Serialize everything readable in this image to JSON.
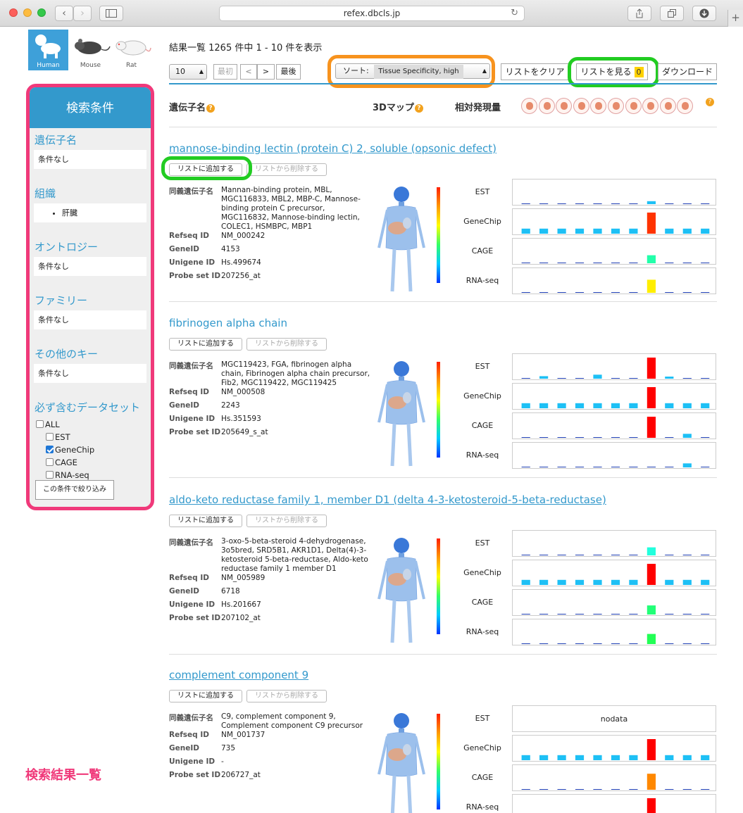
{
  "browser": {
    "url": "refex.dbcls.jp",
    "back": "‹",
    "forward": "›",
    "reload": "↻",
    "new_tab": "+"
  },
  "species": {
    "human": "Human",
    "mouse": "Mouse",
    "rat": "Rat"
  },
  "sidebar": {
    "title": "検索条件",
    "sections": [
      {
        "title": "遺伝子名",
        "value": "条件なし"
      },
      {
        "title": "組織",
        "value": "肝臓"
      },
      {
        "title": "オントロジー",
        "value": "条件なし"
      },
      {
        "title": "ファミリー",
        "value": "条件なし"
      },
      {
        "title": "その他のキー",
        "value": "条件なし"
      }
    ],
    "datasets_title": "必ず含むデータセット",
    "datasets": [
      {
        "label": "ALL",
        "checked": false
      },
      {
        "label": "EST",
        "checked": false
      },
      {
        "label": "GeneChip",
        "checked": true
      },
      {
        "label": "CAGE",
        "checked": false
      },
      {
        "label": "RNA-seq",
        "checked": false
      }
    ],
    "filter_button": "この条件で絞り込み"
  },
  "annotation_label": "検索結果一覧",
  "results": {
    "summary": "結果一覧 1265 件中 1 - 10 件を表示",
    "per_page": "10",
    "first": "最初",
    "prev": "<",
    "next": ">",
    "last": "最後",
    "sort_label": "ソート:",
    "sort_value": "Tissue Specificity, high",
    "clear_list": "リストをクリア",
    "view_list": "リストを見る",
    "list_count": "0",
    "download": "ダウンロード"
  },
  "columns": {
    "gene_name": "遺伝子名",
    "map3d": "3Dマップ",
    "relative_expression": "相対発現量",
    "help": "?"
  },
  "buttons": {
    "add_to_list": "リストに追加する",
    "remove_from_list": "リストから削除する"
  },
  "field_labels": {
    "synonyms": "同義遺伝子名",
    "refseq": "Refseq ID",
    "geneid": "GeneID",
    "unigene": "Unigene ID",
    "probe": "Probe set ID"
  },
  "datasets_labels": [
    "EST",
    "GeneChip",
    "CAGE",
    "RNA-seq"
  ],
  "nodata_label": "nodata",
  "colors": {
    "accent": "#3399cc",
    "pink": "#f0397a",
    "orange": "#f7931e",
    "green": "#22cc22",
    "bar_cyan": "#1ec0f5",
    "bar_baseline": "#1f3fb4"
  },
  "genes": [
    {
      "title": "mannose-binding lectin (protein C) 2, soluble (opsonic defect)",
      "synonyms": "Mannan-binding protein, MBL, MGC116833, MBL2, MBP-C, Mannose-binding protein C precursor, MGC116832, Mannose-binding lectin, COLEC1, HSMBPC, MBP1",
      "refseq": "NM_000242",
      "geneid": "4153",
      "unigene": "Hs.499674",
      "probe": "207256_at",
      "charts": [
        {
          "values": [
            0,
            0,
            0,
            0,
            0,
            0,
            0,
            0.14,
            0,
            0,
            0
          ],
          "colors": [
            "#1f3fb4",
            "#1f3fb4",
            "#1f3fb4",
            "#1f3fb4",
            "#1f3fb4",
            "#1f3fb4",
            "#1f3fb4",
            "#1ec0f5",
            "#1f3fb4",
            "#1f3fb4",
            "#1f3fb4"
          ]
        },
        {
          "values": [
            0.24,
            0.24,
            0.24,
            0.24,
            0.24,
            0.24,
            0.24,
            1,
            0.24,
            0.24,
            0.24
          ],
          "colors": [
            "#1ec0f5",
            "#1ec0f5",
            "#1ec0f5",
            "#1ec0f5",
            "#1ec0f5",
            "#1ec0f5",
            "#1ec0f5",
            "#ff3300",
            "#1ec0f5",
            "#1ec0f5",
            "#1ec0f5"
          ]
        },
        {
          "values": [
            0,
            0,
            0,
            0,
            0,
            0,
            0,
            0.38,
            0,
            0,
            0
          ],
          "colors": [
            "#1f3fb4",
            "#1f3fb4",
            "#1f3fb4",
            "#1f3fb4",
            "#1f3fb4",
            "#1f3fb4",
            "#1f3fb4",
            "#22ffaa",
            "#1f3fb4",
            "#1f3fb4",
            "#1f3fb4"
          ]
        },
        {
          "values": [
            0,
            0,
            0,
            0,
            0,
            0,
            0,
            0.62,
            0,
            0,
            0
          ],
          "colors": [
            "#1f3fb4",
            "#1f3fb4",
            "#1f3fb4",
            "#1f3fb4",
            "#1f3fb4",
            "#1f3fb4",
            "#1f3fb4",
            "#ffee00",
            "#1f3fb4",
            "#1f3fb4",
            "#1f3fb4"
          ]
        }
      ]
    },
    {
      "title": "fibrinogen alpha chain",
      "synonyms": "MGC119423, FGA, fibrinogen alpha chain, Fibrinogen alpha chain precursor, Fib2, MGC119422, MGC119425",
      "refseq": "NM_000508",
      "geneid": "2243",
      "unigene": "Hs.351593",
      "probe": "205649_s_at",
      "charts": [
        {
          "values": [
            0,
            0.12,
            0,
            0,
            0.19,
            0,
            0,
            1,
            0.1,
            0,
            0
          ],
          "colors": [
            "#1f3fb4",
            "#1ec0f5",
            "#1f3fb4",
            "#1f3fb4",
            "#1ec0f5",
            "#1f3fb4",
            "#1f3fb4",
            "#ff0000",
            "#1ec0f5",
            "#1f3fb4",
            "#1f3fb4"
          ]
        },
        {
          "values": [
            0.24,
            0.24,
            0.24,
            0.24,
            0.24,
            0.24,
            0.24,
            1,
            0.24,
            0.24,
            0.24
          ],
          "colors": [
            "#1ec0f5",
            "#1ec0f5",
            "#1ec0f5",
            "#1ec0f5",
            "#1ec0f5",
            "#1ec0f5",
            "#1ec0f5",
            "#ff0000",
            "#1ec0f5",
            "#1ec0f5",
            "#1ec0f5"
          ]
        },
        {
          "values": [
            0,
            0,
            0,
            0,
            0,
            0,
            0,
            1,
            0,
            0.19,
            0
          ],
          "colors": [
            "#1f3fb4",
            "#1f3fb4",
            "#1f3fb4",
            "#1f3fb4",
            "#1f3fb4",
            "#1f3fb4",
            "#1f3fb4",
            "#ff0000",
            "#1f3fb4",
            "#1ec0f5",
            "#1f3fb4"
          ]
        },
        {
          "values": [
            0,
            0,
            0,
            0,
            0,
            0,
            0,
            0,
            0,
            0.19,
            0
          ],
          "colors": [
            "#1f3fb4",
            "#1f3fb4",
            "#1f3fb4",
            "#1f3fb4",
            "#1f3fb4",
            "#1f3fb4",
            "#1f3fb4",
            "#1f3fb4",
            "#1f3fb4",
            "#1ec0f5",
            "#1f3fb4"
          ]
        }
      ]
    },
    {
      "title": "aldo-keto reductase family 1, member D1 (delta 4-3-ketosteroid-5-beta-reductase)",
      "synonyms": "3-oxo-5-beta-steroid 4-dehydrogenase, 3o5bred, SRD5B1, AKR1D1, Delta(4)-3-ketosteroid 5-beta-reductase, Aldo-keto reductase family 1 member D1",
      "refseq": "NM_005989",
      "geneid": "6718",
      "unigene": "Hs.201667",
      "probe": "207102_at",
      "charts": [
        {
          "values": [
            0,
            0,
            0,
            0,
            0,
            0,
            0,
            0.38,
            0,
            0,
            0
          ],
          "colors": [
            "#1f3fb4",
            "#1f3fb4",
            "#1f3fb4",
            "#1f3fb4",
            "#1f3fb4",
            "#1f3fb4",
            "#1f3fb4",
            "#22ffdd",
            "#1f3fb4",
            "#1f3fb4",
            "#1f3fb4"
          ]
        },
        {
          "values": [
            0.24,
            0.24,
            0.24,
            0.24,
            0.24,
            0.24,
            0.24,
            1,
            0.24,
            0.24,
            0.24
          ],
          "colors": [
            "#1ec0f5",
            "#1ec0f5",
            "#1ec0f5",
            "#1ec0f5",
            "#1ec0f5",
            "#1ec0f5",
            "#1ec0f5",
            "#ff0000",
            "#1ec0f5",
            "#1ec0f5",
            "#1ec0f5"
          ]
        },
        {
          "values": [
            0,
            0,
            0,
            0,
            0,
            0,
            0,
            0.43,
            0,
            0,
            0
          ],
          "colors": [
            "#1f3fb4",
            "#1f3fb4",
            "#1f3fb4",
            "#1f3fb4",
            "#1f3fb4",
            "#1f3fb4",
            "#1f3fb4",
            "#22ff77",
            "#1f3fb4",
            "#1f3fb4",
            "#1f3fb4"
          ]
        },
        {
          "values": [
            0,
            0,
            0,
            0,
            0,
            0,
            0,
            0.48,
            0,
            0,
            0
          ],
          "colors": [
            "#1f3fb4",
            "#1f3fb4",
            "#1f3fb4",
            "#1f3fb4",
            "#1f3fb4",
            "#1f3fb4",
            "#1f3fb4",
            "#22ff55",
            "#1f3fb4",
            "#1f3fb4",
            "#1f3fb4"
          ]
        }
      ]
    },
    {
      "title": "complement component 9",
      "synonyms": "C9, complement component 9, Complement component C9 precursor",
      "refseq": "NM_001737",
      "geneid": "735",
      "unigene": "-",
      "probe": "206727_at",
      "charts": [
        {
          "nodata": true,
          "values": [],
          "colors": []
        },
        {
          "values": [
            0.24,
            0.24,
            0.24,
            0.24,
            0.24,
            0.24,
            0.24,
            1,
            0.24,
            0.24,
            0.24
          ],
          "colors": [
            "#1ec0f5",
            "#1ec0f5",
            "#1ec0f5",
            "#1ec0f5",
            "#1ec0f5",
            "#1ec0f5",
            "#1ec0f5",
            "#ff0000",
            "#1ec0f5",
            "#1ec0f5",
            "#1ec0f5"
          ]
        },
        {
          "values": [
            0,
            0,
            0,
            0,
            0,
            0,
            0,
            0.76,
            0,
            0,
            0
          ],
          "colors": [
            "#1f3fb4",
            "#1f3fb4",
            "#1f3fb4",
            "#1f3fb4",
            "#1f3fb4",
            "#1f3fb4",
            "#1f3fb4",
            "#ff8800",
            "#1f3fb4",
            "#1f3fb4",
            "#1f3fb4"
          ]
        },
        {
          "values": [
            0,
            0,
            0,
            0,
            0,
            0,
            0,
            1,
            0,
            0,
            0
          ],
          "colors": [
            "#1f3fb4",
            "#1f3fb4",
            "#1f3fb4",
            "#1f3fb4",
            "#1f3fb4",
            "#1f3fb4",
            "#1f3fb4",
            "#ff0000",
            "#1f3fb4",
            "#1f3fb4",
            "#1f3fb4"
          ]
        }
      ]
    }
  ]
}
